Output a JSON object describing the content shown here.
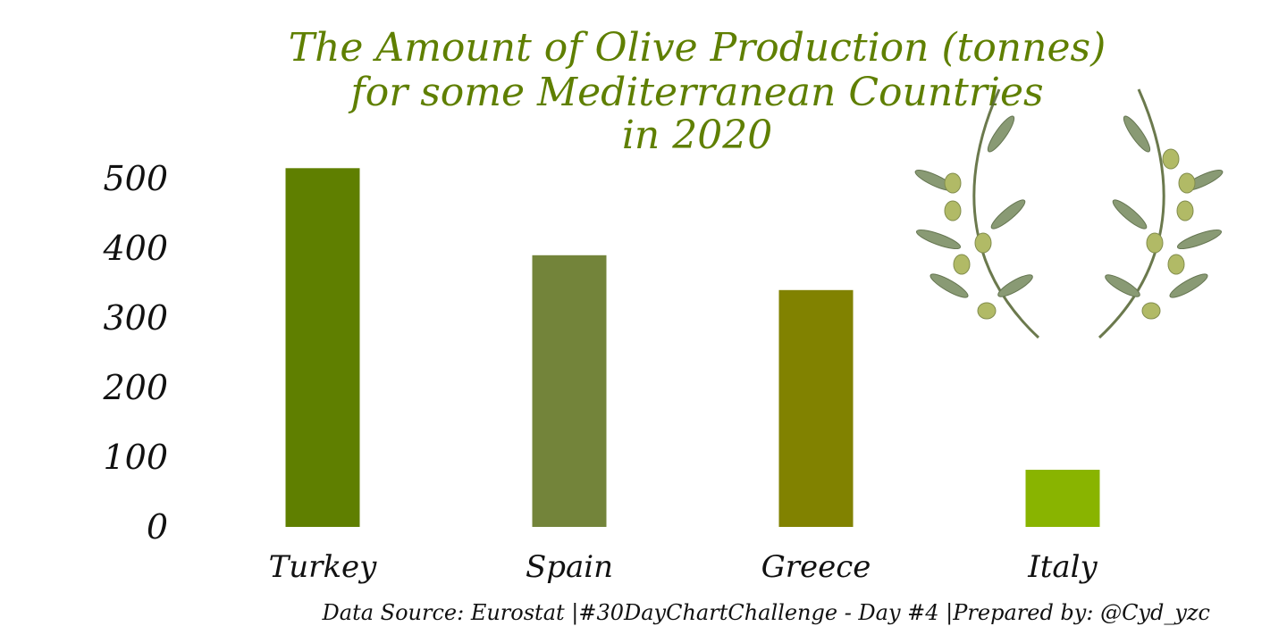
{
  "chart_data": {
    "type": "bar",
    "title_lines": [
      "The Amount of Olive Production (tonnes)",
      "for some Mediterranean Countries",
      "in 2020"
    ],
    "categories": [
      "Turkey",
      "Spain",
      "Greece",
      "Italy"
    ],
    "values": [
      515,
      390,
      340,
      82
    ],
    "bar_colors": [
      "#5f7f00",
      "#73843a",
      "#818200",
      "#89b400"
    ],
    "ylim": [
      0,
      520
    ],
    "yticks": [
      0,
      100,
      200,
      300,
      400,
      500
    ],
    "grid": false,
    "source": "Data Source: Eurostat |#30DayChartChallenge - Day #4 |Prepared by: @Cyd_yzc"
  },
  "decoration": {
    "icon": "olive-branch-wreath-icon",
    "title_color": "#5f7f00"
  }
}
